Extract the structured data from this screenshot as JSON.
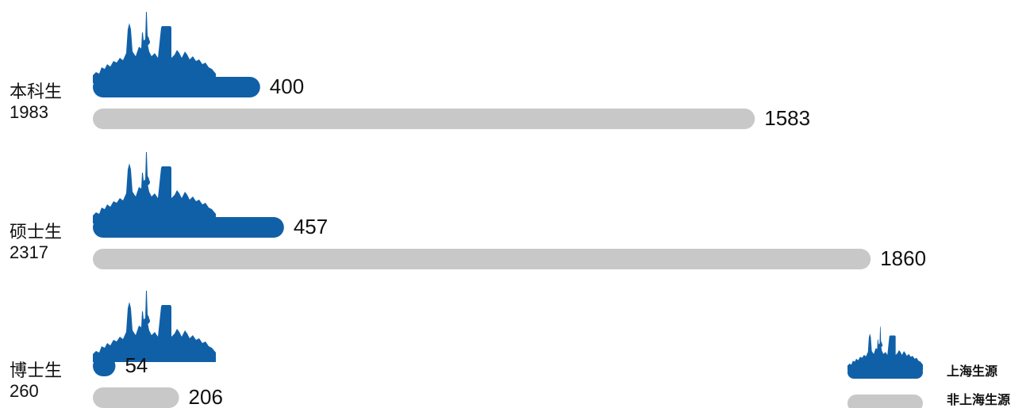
{
  "chart_data": {
    "type": "bar",
    "categories": [
      "本科生",
      "硕士生",
      "博士生"
    ],
    "totals": [
      1983,
      2317,
      260
    ],
    "series": [
      {
        "name": "上海生源",
        "color": "#1060a8",
        "values": [
          400,
          457,
          54
        ]
      },
      {
        "name": "非上海生源",
        "color": "#c8c8c8",
        "values": [
          1583,
          1860,
          206
        ]
      }
    ]
  }
}
